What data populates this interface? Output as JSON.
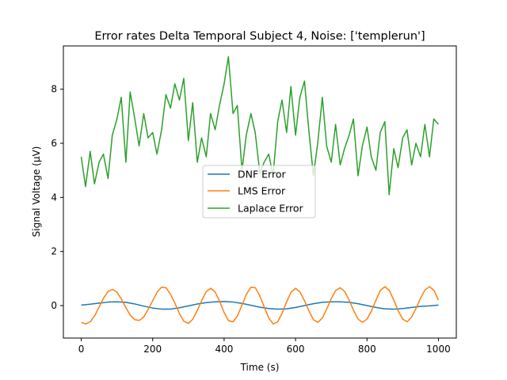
{
  "chart_data": {
    "type": "line",
    "title": "Error rates Delta Temporal Subject 4, Noise: ['templerun']",
    "xlabel": "Time (s)",
    "ylabel": "Signal Voltage (μV)",
    "xlim": [
      -50,
      1050
    ],
    "ylim": [
      -1.2,
      9.6
    ],
    "xticks": [
      0,
      200,
      400,
      600,
      800,
      1000
    ],
    "yticks": [
      0,
      2,
      4,
      6,
      8
    ],
    "legend_position": "center",
    "grid": false,
    "series": [
      {
        "name": "DNF Error",
        "color": "#1f77b4",
        "x": [
          0,
          25,
          50,
          75,
          100,
          125,
          150,
          175,
          200,
          225,
          250,
          275,
          300,
          325,
          350,
          375,
          400,
          425,
          450,
          475,
          500,
          525,
          550,
          575,
          600,
          625,
          650,
          675,
          700,
          725,
          750,
          775,
          800,
          825,
          850,
          875,
          900,
          925,
          950,
          975,
          1000
        ],
        "y": [
          0.02,
          0.05,
          0.09,
          0.13,
          0.14,
          0.12,
          0.06,
          -0.02,
          -0.09,
          -0.13,
          -0.13,
          -0.08,
          -0.01,
          0.06,
          0.11,
          0.14,
          0.15,
          0.13,
          0.08,
          0.01,
          -0.06,
          -0.11,
          -0.13,
          -0.12,
          -0.07,
          0.0,
          0.07,
          0.12,
          0.14,
          0.14,
          0.12,
          0.07,
          0.0,
          -0.07,
          -0.12,
          -0.13,
          -0.11,
          -0.07,
          -0.03,
          -0.01,
          0.02
        ]
      },
      {
        "name": "LMS Error",
        "color": "#ff7f0e",
        "x": [
          0,
          12.5,
          25,
          37.5,
          50,
          62.5,
          75,
          87.5,
          100,
          112.5,
          125,
          137.5,
          150,
          162.5,
          175,
          187.5,
          200,
          212.5,
          225,
          237.5,
          250,
          262.5,
          275,
          287.5,
          300,
          312.5,
          325,
          337.5,
          350,
          362.5,
          375,
          387.5,
          400,
          412.5,
          425,
          437.5,
          450,
          462.5,
          475,
          487.5,
          500,
          512.5,
          525,
          537.5,
          550,
          562.5,
          575,
          587.5,
          600,
          612.5,
          625,
          637.5,
          650,
          662.5,
          675,
          687.5,
          700,
          712.5,
          725,
          737.5,
          750,
          762.5,
          775,
          787.5,
          800,
          812.5,
          825,
          837.5,
          850,
          862.5,
          875,
          887.5,
          900,
          912.5,
          925,
          937.5,
          950,
          962.5,
          975,
          987.5,
          1000
        ],
        "y": [
          -0.62,
          -0.68,
          -0.6,
          -0.38,
          -0.05,
          0.28,
          0.52,
          0.6,
          0.5,
          0.24,
          -0.08,
          -0.36,
          -0.52,
          -0.55,
          -0.42,
          -0.14,
          0.18,
          0.5,
          0.68,
          0.66,
          0.42,
          0.08,
          -0.3,
          -0.58,
          -0.66,
          -0.5,
          -0.18,
          0.2,
          0.52,
          0.64,
          0.5,
          0.16,
          -0.26,
          -0.56,
          -0.6,
          -0.38,
          0.02,
          0.42,
          0.68,
          0.66,
          0.36,
          -0.06,
          -0.46,
          -0.68,
          -0.6,
          -0.28,
          0.14,
          0.5,
          0.64,
          0.5,
          0.18,
          -0.2,
          -0.52,
          -0.62,
          -0.46,
          -0.12,
          0.26,
          0.56,
          0.66,
          0.52,
          0.2,
          -0.18,
          -0.5,
          -0.62,
          -0.5,
          -0.2,
          0.2,
          0.56,
          0.7,
          0.56,
          0.2,
          -0.2,
          -0.5,
          -0.6,
          -0.42,
          -0.1,
          0.28,
          0.58,
          0.7,
          0.56,
          0.2
        ]
      },
      {
        "name": "Laplace Error",
        "color": "#2ca02c",
        "x": [
          0,
          12,
          25,
          37,
          50,
          62,
          75,
          87,
          100,
          112,
          125,
          137,
          150,
          162,
          175,
          187,
          200,
          212,
          225,
          237,
          250,
          262,
          275,
          287,
          300,
          312,
          325,
          337,
          350,
          362,
          375,
          387,
          400,
          412,
          425,
          437,
          450,
          462,
          475,
          487,
          500,
          512,
          525,
          537,
          550,
          562,
          575,
          587,
          600,
          612,
          625,
          637,
          650,
          662,
          675,
          687,
          700,
          712,
          725,
          737,
          750,
          762,
          775,
          787,
          800,
          812,
          825,
          837,
          850,
          862,
          875,
          887,
          900,
          912,
          925,
          937,
          950,
          962,
          975,
          987,
          1000
        ],
        "y": [
          5.5,
          4.4,
          5.7,
          4.5,
          5.3,
          5.6,
          4.7,
          6.3,
          6.9,
          7.7,
          5.3,
          7.9,
          6.9,
          5.9,
          7.1,
          6.2,
          6.4,
          5.6,
          6.5,
          7.8,
          7.3,
          8.2,
          7.6,
          8.4,
          6.1,
          7.5,
          5.3,
          6.2,
          5.5,
          7.1,
          6.5,
          7.4,
          8.2,
          9.2,
          7.1,
          7.4,
          5.0,
          6.3,
          7.1,
          6.4,
          4.9,
          5.3,
          5.6,
          4.8,
          6.8,
          7.6,
          6.4,
          8.1,
          6.3,
          7.7,
          8.3,
          6.5,
          4.8,
          6.0,
          7.7,
          5.9,
          5.3,
          6.7,
          5.2,
          5.8,
          6.3,
          6.9,
          4.8,
          5.9,
          6.6,
          5.5,
          5.0,
          6.4,
          6.8,
          4.1,
          5.8,
          5.1,
          6.2,
          6.5,
          5.2,
          6.0,
          5.5,
          6.7,
          5.5,
          6.9,
          6.7
        ]
      }
    ]
  }
}
